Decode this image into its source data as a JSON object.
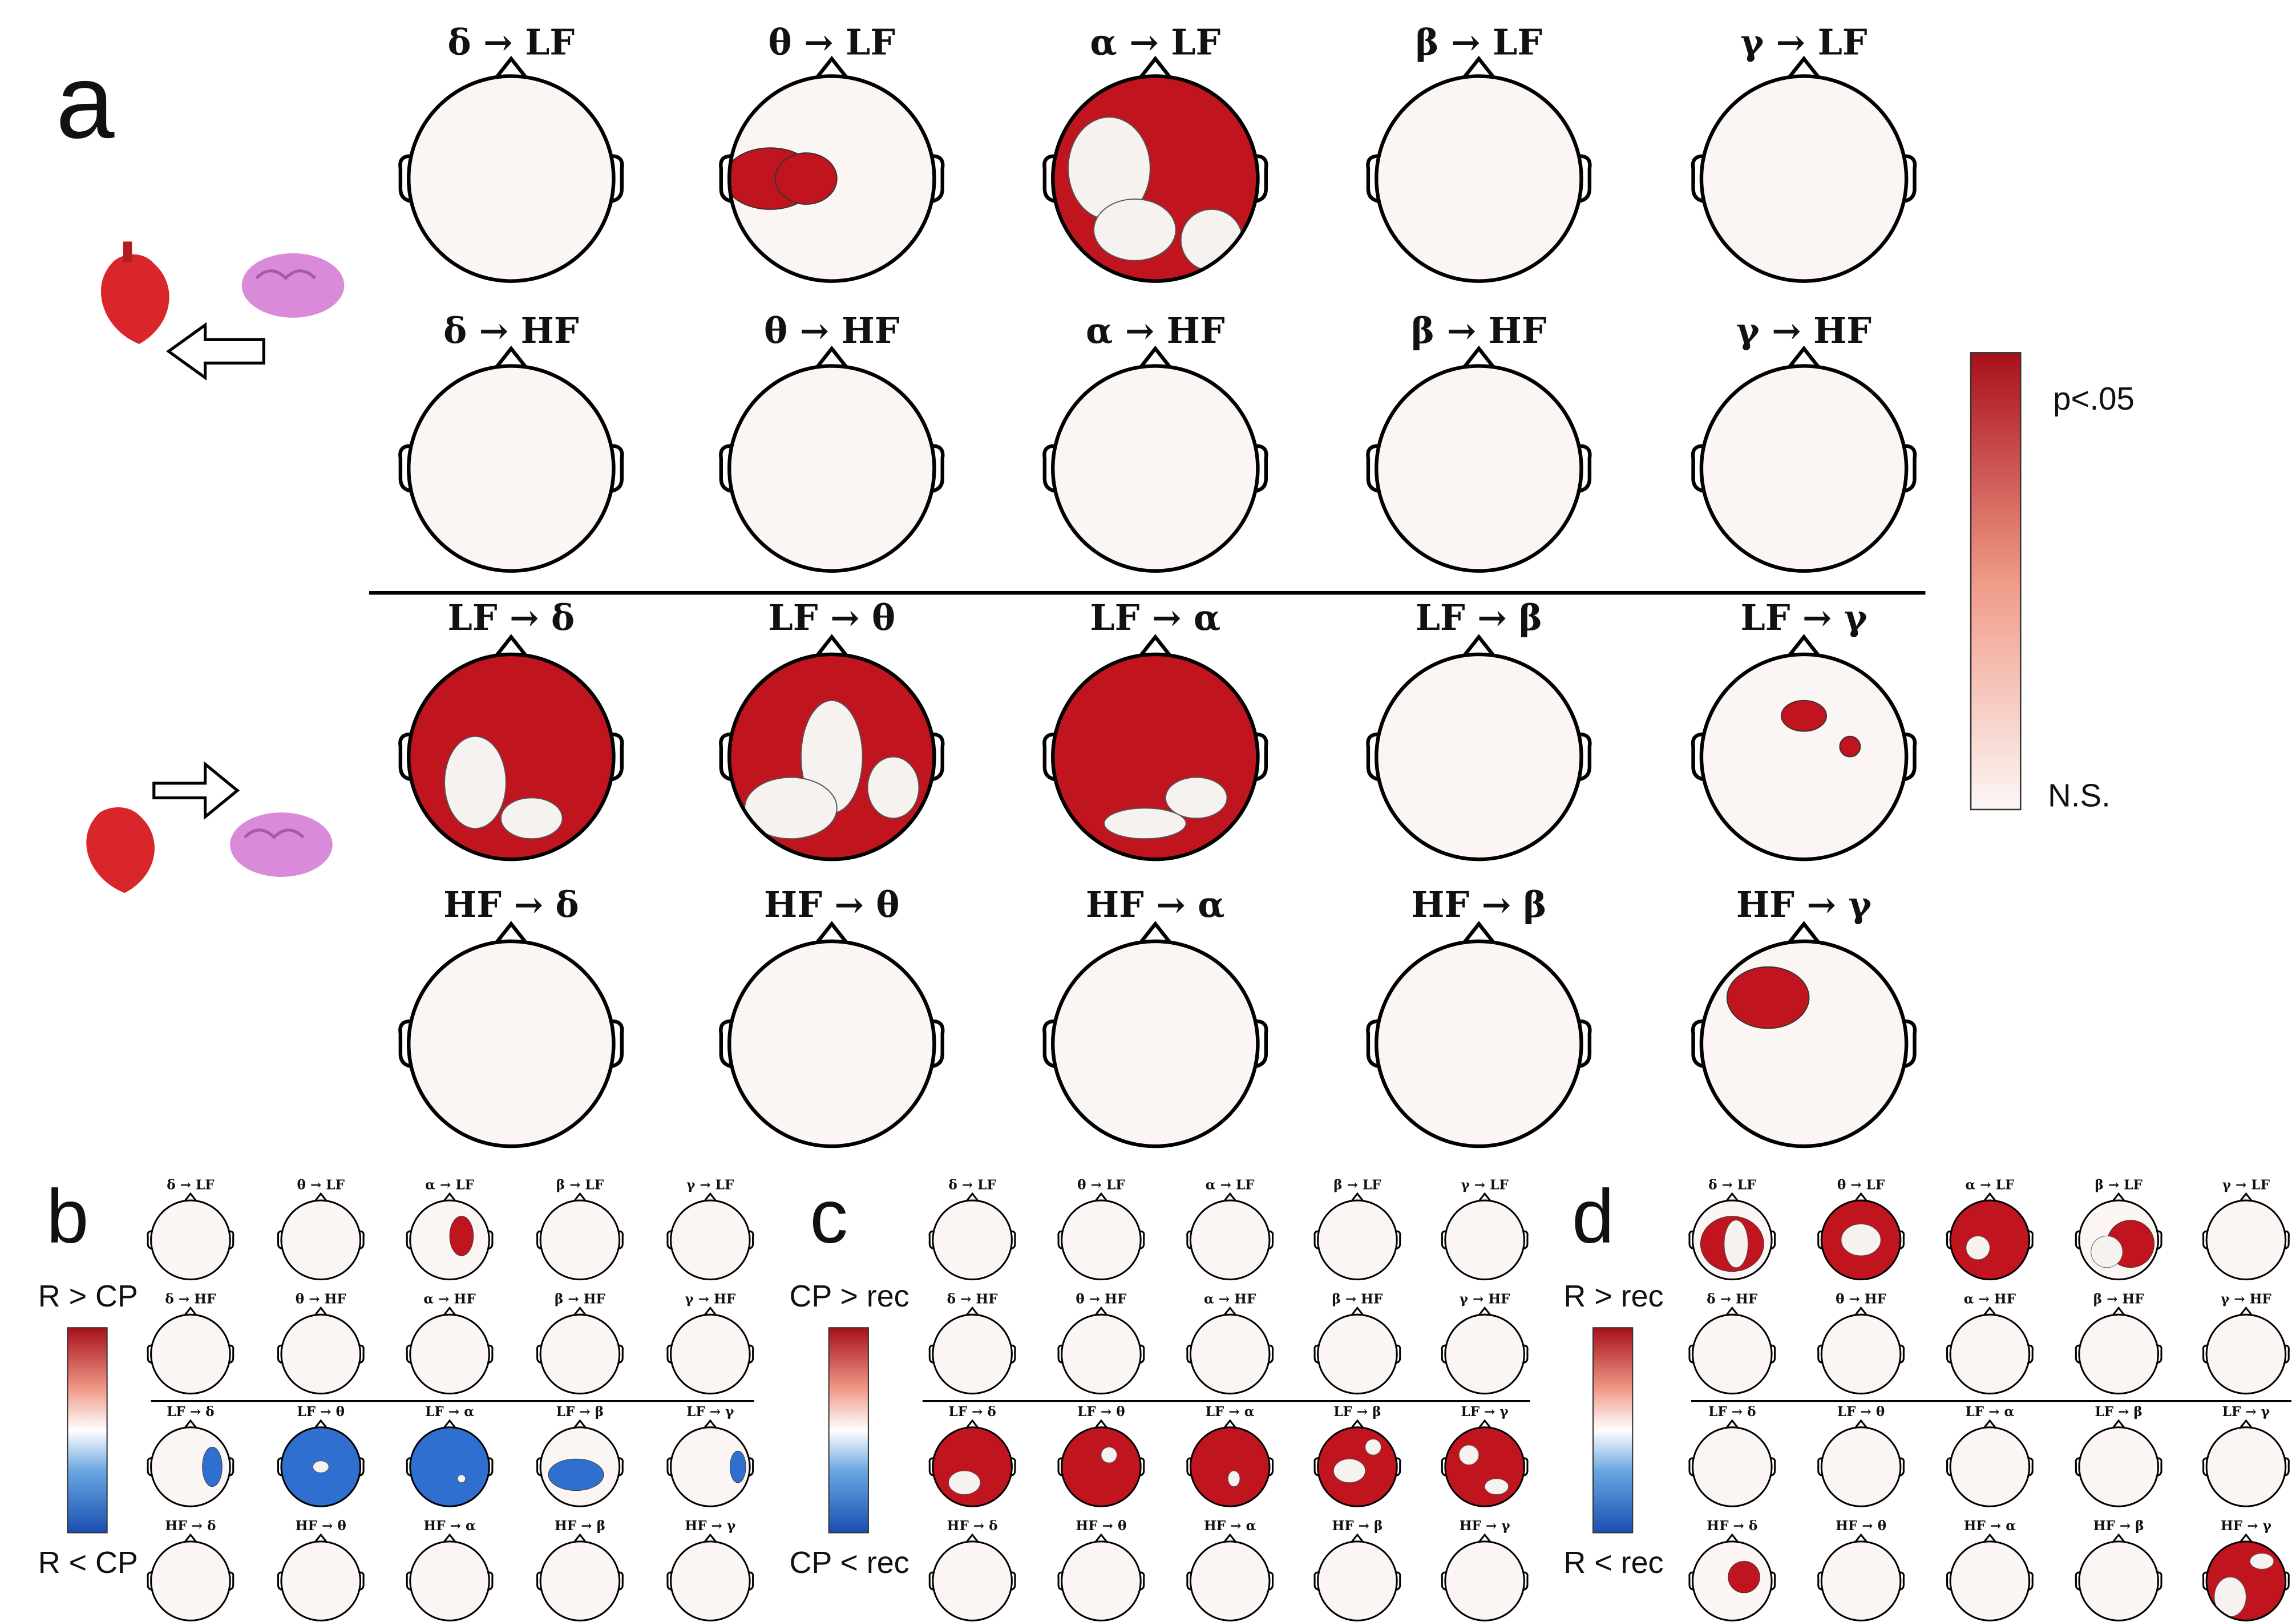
{
  "panel_a": {
    "letter": "a",
    "rows": [
      [
        "δ → LF",
        "θ → LF",
        "α → LF",
        "β → LF",
        "γ → LF"
      ],
      [
        "δ → HF",
        "θ → HF",
        "α → HF",
        "β → HF",
        "γ → HF"
      ],
      [
        "LF → δ",
        "LF → θ",
        "LF → α",
        "LF → β",
        "LF → γ"
      ],
      [
        "HF → δ",
        "HF → θ",
        "HF → α",
        "HF → β",
        "HF → γ"
      ]
    ],
    "colorbar": {
      "top": "p<.05",
      "bottom": "N.S."
    }
  },
  "panel_b": {
    "letter": "b",
    "top_label": "R > CP",
    "bottom_label": "R < CP",
    "rows": [
      [
        "δ → LF",
        "θ → LF",
        "α → LF",
        "β → LF",
        "γ → LF"
      ],
      [
        "δ → HF",
        "θ → HF",
        "α → HF",
        "β → HF",
        "γ → HF"
      ],
      [
        "LF → δ",
        "LF → θ",
        "LF → α",
        "LF → β",
        "LF → γ"
      ],
      [
        "HF → δ",
        "HF → θ",
        "HF → α",
        "HF → β",
        "HF → γ"
      ]
    ]
  },
  "panel_c": {
    "letter": "c",
    "top_label": "CP > rec",
    "bottom_label": "CP < rec",
    "rows": [
      [
        "δ → LF",
        "θ → LF",
        "α → LF",
        "β → LF",
        "γ → LF"
      ],
      [
        "δ → HF",
        "θ → HF",
        "α → HF",
        "β → HF",
        "γ → HF"
      ],
      [
        "LF → δ",
        "LF → θ",
        "LF → α",
        "LF → β",
        "LF → γ"
      ],
      [
        "HF → δ",
        "HF → θ",
        "HF → α",
        "HF → β",
        "HF → γ"
      ]
    ]
  },
  "panel_d": {
    "letter": "d",
    "top_label": "R > rec",
    "bottom_label": "R < rec",
    "rows": [
      [
        "δ → LF",
        "θ → LF",
        "α → LF",
        "β → LF",
        "γ → LF"
      ],
      [
        "δ → HF",
        "θ → HF",
        "α → HF",
        "β → HF",
        "γ → HF"
      ],
      [
        "LF → δ",
        "LF → θ",
        "LF → α",
        "LF → β",
        "LF → γ"
      ],
      [
        "HF → δ",
        "HF → θ",
        "HF → α",
        "HF → β",
        "HF → γ"
      ]
    ]
  }
}
